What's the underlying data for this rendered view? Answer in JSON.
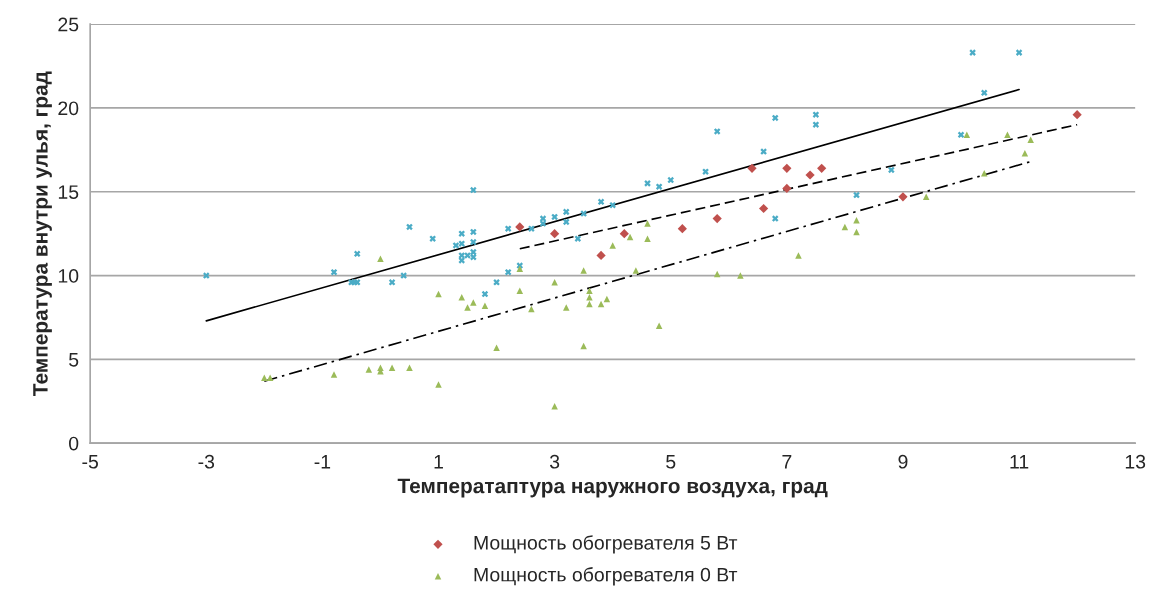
{
  "chart_data": {
    "type": "scatter",
    "xlabel": "Температаптура наружного воздуха, град",
    "ylabel": "Температура внутри улья, град",
    "xlim": [
      -5,
      13
    ],
    "xticks": [
      -5,
      -3,
      -1,
      1,
      3,
      5,
      7,
      9,
      11,
      13
    ],
    "ylim": [
      0,
      25
    ],
    "yticks": [
      0,
      5,
      10,
      15,
      20,
      25
    ],
    "grid": "y",
    "legend": "bottom",
    "series": [
      {
        "color": "#4bacc6",
        "marker": "cross",
        "x": [
          -3,
          -0.8,
          -0.4,
          -0.5,
          -0.45,
          -0.4,
          0.2,
          0.4,
          0.5,
          0.9,
          1.3,
          1.4,
          1.4,
          1.4,
          1.4,
          1.5,
          1.6,
          1.6,
          1.6,
          1.6,
          1.6,
          1.8,
          2.0,
          2.2,
          2.2,
          2.4,
          2.6,
          2.8,
          2.8,
          3.0,
          3.2,
          3.2,
          3.4,
          3.5,
          3.8,
          4.0,
          4.6,
          4.8,
          5.0,
          5.6,
          5.8,
          6.6,
          6.8,
          6.8,
          7.5,
          7.5,
          8.2,
          8.8,
          10.0,
          10.2,
          10.4,
          11.0
        ],
        "values": [
          10.0,
          10.2,
          11.3,
          9.6,
          9.6,
          9.6,
          9.6,
          10.0,
          12.9,
          12.2,
          11.8,
          11.9,
          12.5,
          11.2,
          10.9,
          11.2,
          15.1,
          12.6,
          12.0,
          11.4,
          11.1,
          8.9,
          9.6,
          10.2,
          12.8,
          10.6,
          12.8,
          13.1,
          13.4,
          13.5,
          13.8,
          13.2,
          12.2,
          13.7,
          14.4,
          14.2,
          15.5,
          15.3,
          15.7,
          16.2,
          18.6,
          17.4,
          13.4,
          19.4,
          19.6,
          19.0,
          14.8,
          16.3,
          18.4,
          23.3,
          20.9,
          23.3
        ]
      },
      {
        "name": "Мощность обогревателя 5 Вт",
        "color": "#c0504d",
        "marker": "diamond",
        "x": [
          2.4,
          3.0,
          3.8,
          4.2,
          5.2,
          5.8,
          6.4,
          6.6,
          7.0,
          7.0,
          7.4,
          7.6,
          9.0,
          12.0
        ],
        "values": [
          12.9,
          12.5,
          11.2,
          12.5,
          12.8,
          13.4,
          16.4,
          14.0,
          16.4,
          15.2,
          16.0,
          16.4,
          14.7,
          19.6
        ]
      },
      {
        "name": "Мощность обогревателя 0 Вт",
        "color": "#9bbb59",
        "marker": "triangle",
        "x": [
          -2.0,
          -1.9,
          -0.8,
          -0.2,
          0.0,
          0.0,
          0.2,
          0.5,
          0.0,
          1.0,
          1.0,
          1.4,
          1.5,
          1.6,
          1.8,
          2.0,
          2.4,
          2.4,
          2.6,
          3.0,
          3.0,
          3.2,
          3.5,
          3.5,
          3.6,
          3.6,
          3.6,
          3.8,
          3.9,
          4.0,
          4.3,
          4.4,
          4.6,
          4.6,
          4.8,
          5.8,
          6.2,
          7.2,
          8.0,
          8.2,
          8.2,
          9.4,
          10.1,
          10.4,
          10.8,
          11.1,
          11.2
        ],
        "values": [
          3.9,
          3.9,
          4.1,
          4.4,
          4.5,
          4.3,
          4.5,
          4.5,
          11.0,
          8.9,
          3.5,
          8.7,
          8.1,
          8.4,
          8.2,
          5.7,
          9.1,
          10.4,
          8.0,
          9.6,
          2.2,
          8.1,
          10.3,
          5.8,
          9.1,
          8.7,
          8.3,
          8.3,
          8.6,
          11.8,
          12.3,
          10.3,
          13.1,
          12.2,
          7.0,
          10.1,
          10.0,
          11.2,
          12.9,
          13.3,
          12.6,
          14.7,
          18.4,
          16.1,
          18.4,
          17.3,
          18.1
        ]
      },
      {
        "type": "line",
        "color": "#000000",
        "line_style": "solid",
        "x": [
          -3,
          11
        ],
        "values": [
          7.3,
          21.1
        ]
      },
      {
        "type": "line",
        "color": "#000000",
        "line_style": "dashed",
        "x": [
          2.4,
          12
        ],
        "values": [
          11.6,
          19.0
        ]
      },
      {
        "type": "line",
        "color": "#000000",
        "line_style": "dashdot",
        "x": [
          -2,
          11.2
        ],
        "values": [
          3.7,
          16.8
        ]
      }
    ]
  }
}
